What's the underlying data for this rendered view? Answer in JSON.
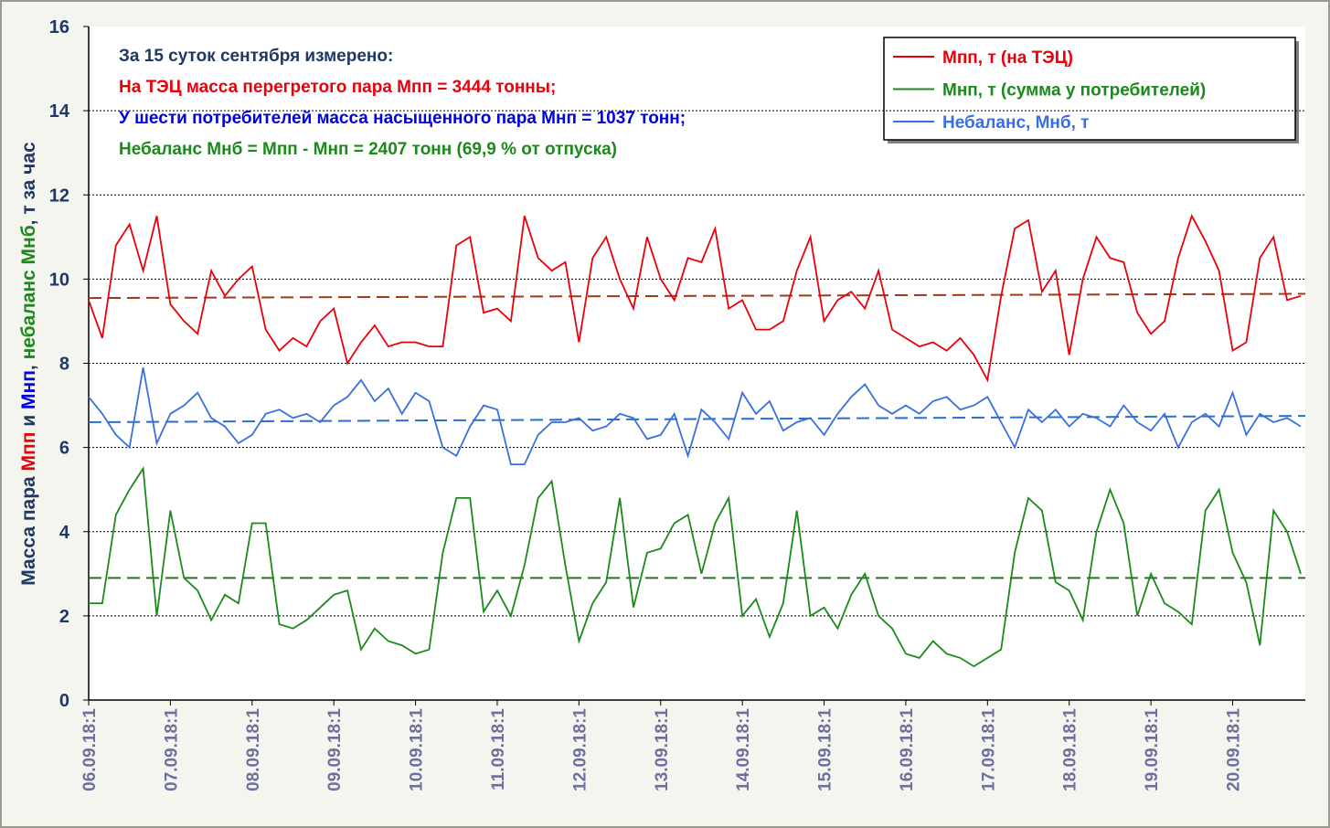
{
  "chart_data": {
    "type": "line",
    "ylabel_parts": [
      {
        "text": "Масса пара ",
        "color": "#1f3864"
      },
      {
        "text": "Мпп",
        "color": "#e8000b"
      },
      {
        "text": " и ",
        "color": "#1f3864"
      },
      {
        "text": "Мнп",
        "color": "#0000e0"
      },
      {
        "text": ", ",
        "color": "#1f3864"
      },
      {
        "text": "небаланс Мнб",
        "color": "#1a8a1a"
      },
      {
        "text": ", т за час",
        "color": "#1f3864"
      }
    ],
    "annotations": [
      {
        "text": "За 15 суток сентября измерено:",
        "color": "#1f3864"
      },
      {
        "text": "На ТЭЦ масса перегретого пара Мпп = 3444 тонны;",
        "color": "#e8000b"
      },
      {
        "text": "У шести потребителей масса насыщенного пара Мнп = 1037 тонн;",
        "color": "#0000e0"
      },
      {
        "text": "Небаланс Мнб = Мпп - Мнп = 2407 тонн (69,9 % от отпуска)",
        "color": "#1a8a1a"
      }
    ],
    "categories": [
      "06.09.18:1",
      null,
      null,
      null,
      null,
      null,
      "07.09.18:1",
      null,
      null,
      null,
      null,
      null,
      "08.09.18:1",
      null,
      null,
      null,
      null,
      null,
      "09.09.18:1",
      null,
      null,
      null,
      null,
      null,
      "10.09.18:1",
      null,
      null,
      null,
      null,
      null,
      "11.09.18:1",
      null,
      null,
      null,
      null,
      null,
      "12.09.18:1",
      null,
      null,
      null,
      null,
      null,
      "13.09.18:1",
      null,
      null,
      null,
      null,
      null,
      "14.09.18:1",
      null,
      null,
      null,
      null,
      null,
      "15.09.18:1",
      null,
      null,
      null,
      null,
      null,
      "16.09.18:1",
      null,
      null,
      null,
      null,
      null,
      "17.09.18:1",
      null,
      null,
      null,
      null,
      null,
      "18.09.18:1",
      null,
      null,
      null,
      null,
      null,
      "19.09.18:1",
      null,
      null,
      null,
      null,
      null,
      "20.09.18:1",
      null,
      null,
      null,
      null,
      null
    ],
    "series": [
      {
        "name": "Мпп, т (на ТЭЦ)",
        "color": "#e8000b",
        "values": [
          9.5,
          8.6,
          10.8,
          11.3,
          10.2,
          11.5,
          9.4,
          9.0,
          8.7,
          10.2,
          9.6,
          10.0,
          10.3,
          8.8,
          8.3,
          8.6,
          8.4,
          9.0,
          9.3,
          8.0,
          8.5,
          8.9,
          8.4,
          8.5,
          8.5,
          8.4,
          8.4,
          10.8,
          11.0,
          9.2,
          9.3,
          9.0,
          11.5,
          10.5,
          10.2,
          10.4,
          8.5,
          10.5,
          11.0,
          10.0,
          9.3,
          11.0,
          10.0,
          9.5,
          10.5,
          10.4,
          11.2,
          9.3,
          9.5,
          8.8,
          8.8,
          9.0,
          10.2,
          11.0,
          9.0,
          9.5,
          9.7,
          9.3,
          10.2,
          8.8,
          8.6,
          8.4,
          8.5,
          8.3,
          8.6,
          8.2,
          7.6,
          9.6,
          11.2,
          11.4,
          9.7,
          10.2,
          8.2,
          10.0,
          11.0,
          10.5,
          10.4,
          9.2,
          8.7,
          9.0,
          10.5,
          11.5,
          10.9,
          10.2,
          8.3,
          8.5,
          10.5,
          11.0,
          9.5,
          9.6
        ]
      },
      {
        "name": "Мнп, т (сумма у потребителей)",
        "color": "#1a8a1a",
        "values": [
          2.3,
          2.3,
          4.4,
          5.0,
          5.5,
          2.0,
          4.5,
          2.9,
          2.6,
          1.9,
          2.5,
          2.3,
          4.2,
          4.2,
          1.8,
          1.7,
          1.9,
          2.2,
          2.5,
          2.6,
          1.2,
          1.7,
          1.4,
          1.3,
          1.1,
          1.2,
          3.5,
          4.8,
          4.8,
          2.1,
          2.6,
          2.0,
          3.2,
          4.8,
          5.2,
          3.2,
          1.4,
          2.3,
          2.8,
          4.8,
          2.2,
          3.5,
          3.6,
          4.2,
          4.4,
          3.0,
          4.2,
          4.8,
          2.0,
          2.4,
          1.5,
          2.3,
          4.5,
          2.0,
          2.2,
          1.7,
          2.5,
          3.0,
          2.0,
          1.7,
          1.1,
          1.0,
          1.4,
          1.1,
          1.0,
          0.8,
          1.0,
          1.2,
          3.5,
          4.8,
          4.5,
          2.8,
          2.6,
          1.9,
          4.0,
          5.0,
          4.2,
          2.0,
          3.0,
          2.3,
          2.1,
          1.8,
          4.5,
          5.0,
          3.5,
          2.8,
          1.3,
          4.5,
          4.0,
          3.0
        ]
      },
      {
        "name": "Небаланс, Мнб, т",
        "color": "#3a6fe0",
        "values": [
          7.2,
          6.8,
          6.3,
          6.0,
          7.9,
          6.1,
          6.8,
          7.0,
          7.3,
          6.7,
          6.5,
          6.1,
          6.3,
          6.8,
          6.9,
          6.7,
          6.8,
          6.6,
          7.0,
          7.2,
          7.6,
          7.1,
          7.4,
          6.8,
          7.3,
          7.1,
          6.0,
          5.8,
          6.5,
          7.0,
          6.9,
          5.6,
          5.6,
          6.3,
          6.6,
          6.6,
          6.7,
          6.4,
          6.5,
          6.8,
          6.7,
          6.2,
          6.3,
          6.8,
          5.8,
          6.9,
          6.6,
          6.2,
          7.3,
          6.8,
          7.1,
          6.4,
          6.6,
          6.7,
          6.3,
          6.8,
          7.2,
          7.5,
          7.0,
          6.8,
          7.0,
          6.8,
          7.1,
          7.2,
          6.9,
          7.0,
          7.2,
          6.6,
          6.0,
          6.9,
          6.6,
          6.9,
          6.5,
          6.8,
          6.7,
          6.5,
          7.0,
          6.6,
          6.4,
          6.8,
          6.0,
          6.6,
          6.8,
          6.5,
          7.3,
          6.3,
          6.8,
          6.6,
          6.7,
          6.5
        ]
      }
    ],
    "trend_lines": [
      {
        "color": "#a0391a",
        "values": [
          9.55,
          9.65
        ]
      },
      {
        "color": "#2a6fd0",
        "values": [
          6.6,
          6.75
        ]
      },
      {
        "color": "#2a6e2a",
        "values": [
          2.9,
          2.9
        ]
      }
    ],
    "ylim": [
      0,
      16
    ],
    "yticks": [
      0,
      2,
      4,
      6,
      8,
      10,
      12,
      14,
      16
    ],
    "grid": true,
    "legend": "top-right"
  }
}
